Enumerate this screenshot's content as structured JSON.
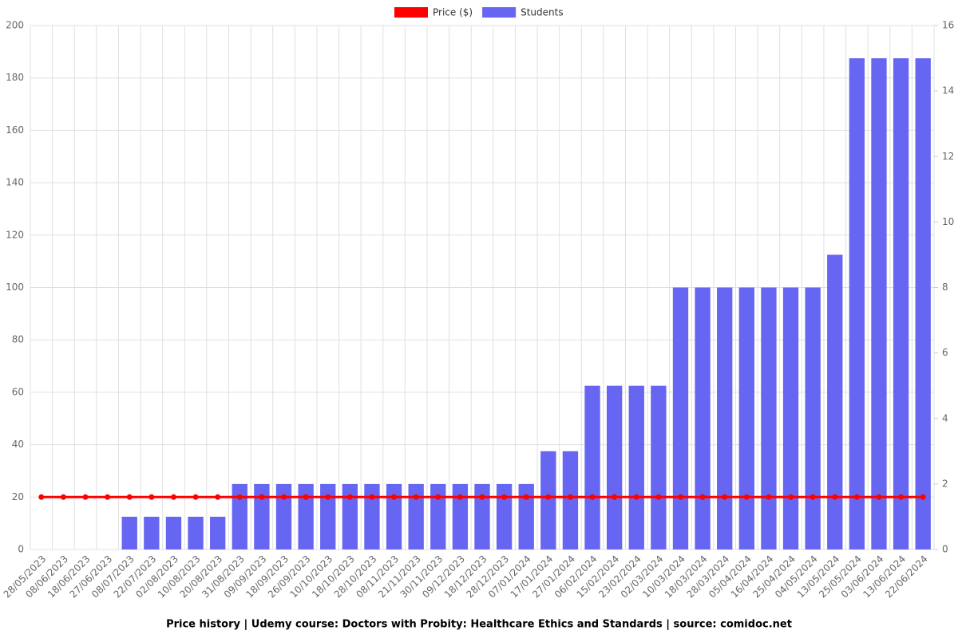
{
  "chart_data": {
    "type": "bar_line",
    "title": "Price history | Udemy course: Doctors with Probity: Healthcare Ethics and Standards | source: comidoc.net",
    "categories": [
      "28/05/2023",
      "08/06/2023",
      "18/06/2023",
      "27/06/2023",
      "08/07/2023",
      "22/07/2023",
      "02/08/2023",
      "10/08/2023",
      "20/08/2023",
      "31/08/2023",
      "09/09/2023",
      "18/09/2023",
      "26/09/2023",
      "10/10/2023",
      "18/10/2023",
      "28/10/2023",
      "08/11/2023",
      "21/11/2023",
      "30/11/2023",
      "09/12/2023",
      "18/12/2023",
      "28/12/2023",
      "07/01/2024",
      "17/01/2024",
      "27/01/2024",
      "06/02/2024",
      "15/02/2024",
      "23/02/2024",
      "02/03/2024",
      "10/03/2024",
      "18/03/2024",
      "28/03/2024",
      "05/04/2024",
      "16/04/2024",
      "25/04/2024",
      "04/05/2024",
      "13/05/2024",
      "25/05/2024",
      "03/06/2024",
      "13/06/2024",
      "22/06/2024"
    ],
    "series": [
      {
        "name": "Price ($)",
        "color": "#ff0000",
        "kind": "line",
        "axis": "y",
        "values": [
          20,
          20,
          20,
          20,
          20,
          20,
          20,
          20,
          20,
          20,
          20,
          20,
          20,
          20,
          20,
          20,
          20,
          20,
          20,
          20,
          20,
          20,
          20,
          20,
          20,
          20,
          20,
          20,
          20,
          20,
          20,
          20,
          20,
          20,
          20,
          20,
          20,
          20,
          20,
          20,
          20
        ]
      },
      {
        "name": "Students",
        "color": "#6666f2",
        "kind": "bar",
        "axis": "y2",
        "values": [
          0,
          0,
          0,
          0,
          1,
          1,
          1,
          1,
          1,
          2,
          2,
          2,
          2,
          2,
          2,
          2,
          2,
          2,
          2,
          2,
          2,
          2,
          2,
          3,
          3,
          5,
          5,
          5,
          5,
          8,
          8,
          8,
          8,
          8,
          8,
          8,
          9,
          15,
          15,
          15,
          15
        ]
      }
    ],
    "ylim": [
      0,
      200
    ],
    "yticks": [
      0,
      20,
      40,
      60,
      80,
      100,
      120,
      140,
      160,
      180,
      200
    ],
    "y2lim": [
      0,
      16
    ],
    "y2ticks": [
      0,
      2,
      4,
      6,
      8,
      10,
      12,
      14,
      16
    ],
    "grid": true
  }
}
